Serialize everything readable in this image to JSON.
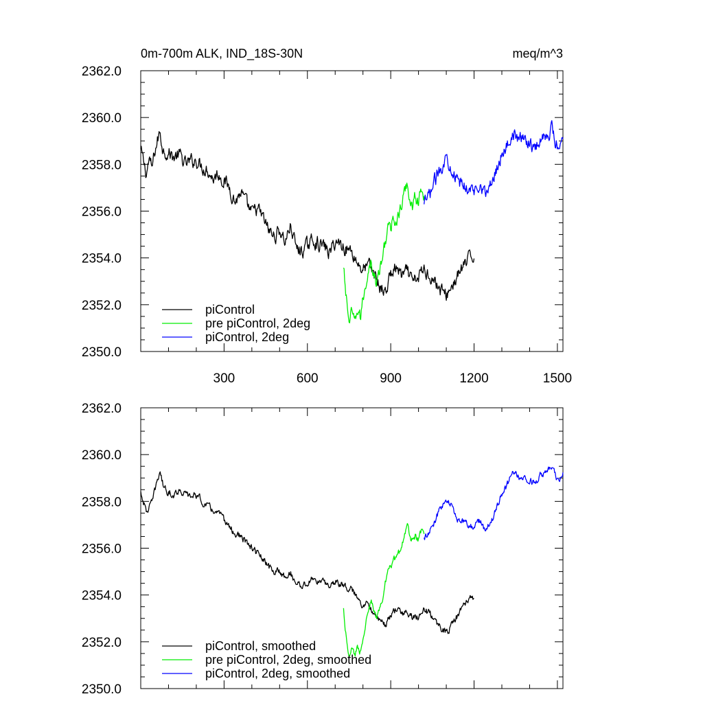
{
  "chart_data": [
    {
      "type": "line",
      "title": "0m-700m ALK, IND_18S-30N",
      "units": "meq/m^3",
      "xlim": [
        0,
        1520
      ],
      "ylim": [
        2350.0,
        2362.0
      ],
      "x_ticks": [
        300,
        600,
        900,
        1200,
        1500
      ],
      "x_tick_labels": [
        "300",
        "600",
        "900",
        "1200",
        "1500"
      ],
      "y_ticks": [
        2350,
        2352,
        2354,
        2356,
        2358,
        2360,
        2362
      ],
      "y_tick_labels": [
        "2350.0",
        "2352.0",
        "2354.0",
        "2356.0",
        "2358.0",
        "2360.0",
        "2362.0"
      ],
      "legend_position": "bottom-left",
      "series": [
        {
          "name": "piControl",
          "color": "#000000",
          "x": [
            0,
            10,
            20,
            30,
            40,
            50,
            60,
            70,
            80,
            100,
            120,
            140,
            160,
            180,
            200,
            220,
            240,
            260,
            280,
            300,
            320,
            340,
            360,
            380,
            400,
            420,
            440,
            460,
            480,
            500,
            520,
            540,
            560,
            580,
            600,
            620,
            640,
            660,
            680,
            700,
            720,
            740,
            760,
            780,
            800,
            820,
            840,
            860,
            880,
            900,
            920,
            940,
            960,
            980,
            1000,
            1020,
            1040,
            1060,
            1080,
            1100,
            1120,
            1140,
            1160,
            1180,
            1200
          ],
          "values": [
            2358.6,
            2358.1,
            2357.6,
            2358.2,
            2357.8,
            2358.5,
            2359.0,
            2359.4,
            2358.6,
            2358.5,
            2358.3,
            2358.4,
            2358.0,
            2358.1,
            2358.2,
            2357.9,
            2357.8,
            2357.4,
            2357.6,
            2357.3,
            2357.0,
            2356.4,
            2356.8,
            2356.3,
            2355.9,
            2356.1,
            2355.7,
            2355.2,
            2354.9,
            2355.2,
            2354.7,
            2355.4,
            2354.4,
            2354.3,
            2354.5,
            2354.8,
            2354.6,
            2354.5,
            2354.2,
            2354.7,
            2354.6,
            2354.4,
            2354.3,
            2353.8,
            2353.5,
            2353.7,
            2353.3,
            2352.8,
            2352.5,
            2353.3,
            2353.6,
            2353.2,
            2353.4,
            2352.9,
            2353.2,
            2353.5,
            2353.3,
            2353.0,
            2352.6,
            2352.4,
            2352.8,
            2353.2,
            2353.6,
            2353.9,
            2354.1
          ]
        },
        {
          "name": "pre piControl, 2deg",
          "color": "#00ee00",
          "x": [
            730,
            740,
            750,
            760,
            770,
            780,
            790,
            800,
            810,
            820,
            830,
            840,
            850,
            860,
            870,
            880,
            890,
            900,
            910,
            920,
            930,
            940,
            950,
            960,
            970,
            980,
            990,
            1000,
            1010,
            1020
          ],
          "values": [
            2353.5,
            2352.3,
            2351.3,
            2351.6,
            2351.1,
            2351.8,
            2351.4,
            2352.2,
            2352.9,
            2353.6,
            2353.9,
            2353.2,
            2352.9,
            2353.5,
            2353.9,
            2354.7,
            2355.4,
            2355.1,
            2355.8,
            2355.5,
            2355.9,
            2356.2,
            2356.8,
            2357.2,
            2356.5,
            2356.2,
            2356.7,
            2356.4,
            2356.8,
            2356.6
          ]
        },
        {
          "name": "piControl, 2deg",
          "color": "#0000ff",
          "x": [
            1020,
            1040,
            1060,
            1080,
            1100,
            1120,
            1140,
            1160,
            1180,
            1200,
            1220,
            1240,
            1260,
            1280,
            1300,
            1320,
            1340,
            1360,
            1380,
            1400,
            1420,
            1440,
            1460,
            1480,
            1500,
            1520
          ],
          "values": [
            2356.2,
            2356.7,
            2357.3,
            2357.9,
            2358.3,
            2357.9,
            2357.2,
            2357.1,
            2357.0,
            2356.8,
            2357.3,
            2356.7,
            2357.1,
            2357.8,
            2358.5,
            2358.8,
            2359.4,
            2359.0,
            2359.2,
            2358.9,
            2358.7,
            2359.1,
            2359.3,
            2359.5,
            2358.8,
            2359.2
          ]
        }
      ]
    },
    {
      "type": "line",
      "xlim": [
        0,
        1520
      ],
      "ylim": [
        2350.0,
        2362.0
      ],
      "y_ticks": [
        2350,
        2352,
        2354,
        2356,
        2358,
        2360,
        2362
      ],
      "y_tick_labels": [
        "2350.0",
        "2352.0",
        "2354.0",
        "2356.0",
        "2358.0",
        "2360.0",
        "2362.0"
      ],
      "legend_position": "bottom-left",
      "series": [
        {
          "name": "piControl, smoothed",
          "color": "#000000",
          "x": [
            0,
            10,
            20,
            30,
            40,
            50,
            60,
            70,
            80,
            100,
            120,
            140,
            160,
            180,
            200,
            220,
            240,
            260,
            280,
            300,
            320,
            340,
            360,
            380,
            400,
            420,
            440,
            460,
            480,
            500,
            520,
            540,
            560,
            580,
            600,
            620,
            640,
            660,
            680,
            700,
            720,
            740,
            760,
            780,
            800,
            820,
            840,
            860,
            880,
            900,
            920,
            940,
            960,
            980,
            1000,
            1020,
            1040,
            1060,
            1080,
            1100,
            1120,
            1140,
            1160,
            1180,
            1200
          ],
          "values": [
            2358.4,
            2358.0,
            2357.5,
            2357.8,
            2357.9,
            2358.4,
            2358.9,
            2359.3,
            2358.7,
            2358.4,
            2358.3,
            2358.5,
            2358.3,
            2358.2,
            2358.3,
            2358.0,
            2357.8,
            2357.6,
            2357.5,
            2357.2,
            2356.9,
            2356.6,
            2356.5,
            2356.2,
            2356.0,
            2355.8,
            2355.5,
            2355.2,
            2355.0,
            2355.0,
            2354.8,
            2354.9,
            2354.5,
            2354.4,
            2354.5,
            2354.7,
            2354.6,
            2354.5,
            2354.4,
            2354.6,
            2354.5,
            2354.4,
            2354.2,
            2353.9,
            2353.6,
            2353.6,
            2353.3,
            2352.9,
            2352.7,
            2353.1,
            2353.4,
            2353.2,
            2353.3,
            2353.0,
            2353.1,
            2353.4,
            2353.2,
            2352.9,
            2352.6,
            2352.4,
            2352.7,
            2353.1,
            2353.5,
            2353.8,
            2353.9
          ]
        },
        {
          "name": "pre piControl, 2deg, smoothed",
          "color": "#00ee00",
          "x": [
            730,
            740,
            750,
            760,
            770,
            780,
            790,
            800,
            810,
            820,
            830,
            840,
            850,
            860,
            870,
            880,
            890,
            900,
            910,
            920,
            930,
            940,
            950,
            960,
            970,
            980,
            990,
            1000,
            1010,
            1020
          ],
          "values": [
            2353.4,
            2352.2,
            2351.5,
            2351.7,
            2351.4,
            2351.7,
            2351.6,
            2352.2,
            2352.8,
            2353.4,
            2353.7,
            2353.3,
            2353.0,
            2353.4,
            2353.8,
            2354.5,
            2355.1,
            2355.1,
            2355.6,
            2355.5,
            2355.8,
            2356.1,
            2356.6,
            2356.9,
            2356.5,
            2356.3,
            2356.6,
            2356.4,
            2356.7,
            2356.6
          ]
        },
        {
          "name": "piControl, 2deg, smoothed",
          "color": "#0000ff",
          "x": [
            1020,
            1040,
            1060,
            1080,
            1100,
            1120,
            1140,
            1160,
            1180,
            1200,
            1220,
            1240,
            1260,
            1280,
            1300,
            1320,
            1340,
            1360,
            1380,
            1400,
            1420,
            1440,
            1460,
            1480,
            1500,
            1520
          ],
          "values": [
            2356.4,
            2356.7,
            2357.2,
            2357.8,
            2358.1,
            2357.8,
            2357.2,
            2357.1,
            2357.0,
            2356.9,
            2357.2,
            2356.8,
            2357.1,
            2357.7,
            2358.3,
            2358.7,
            2359.3,
            2359.0,
            2359.1,
            2358.9,
            2358.8,
            2359.1,
            2359.3,
            2359.4,
            2358.9,
            2359.2
          ]
        }
      ]
    }
  ]
}
